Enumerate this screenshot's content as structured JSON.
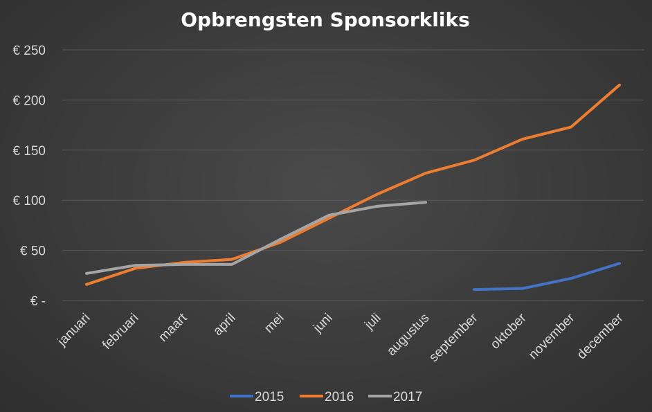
{
  "chart_data": {
    "type": "line",
    "title": "Opbrengsten Sponsorkliks",
    "xlabel": "",
    "ylabel": "",
    "categories": [
      "januari",
      "februari",
      "maart",
      "april",
      "mei",
      "juni",
      "juli",
      "augustus",
      "september",
      "oktober",
      "november",
      "december"
    ],
    "yticks": [
      "€ -",
      "€ 50",
      "€ 100",
      "€ 150",
      "€ 200",
      "€ 250"
    ],
    "ylim": [
      0,
      250
    ],
    "grid": true,
    "legend_position": "bottom",
    "series": [
      {
        "name": "2015",
        "color": "#4472c4",
        "values": [
          null,
          null,
          null,
          null,
          null,
          null,
          null,
          null,
          11,
          12,
          22,
          37
        ]
      },
      {
        "name": "2016",
        "color": "#ed7d31",
        "values": [
          16,
          32,
          38,
          41,
          58,
          82,
          106,
          127,
          140,
          161,
          173,
          215
        ]
      },
      {
        "name": "2017",
        "color": "#a5a5a5",
        "values": [
          27,
          35,
          36,
          36,
          61,
          85,
          94,
          98,
          null,
          null,
          null,
          null
        ]
      }
    ]
  }
}
